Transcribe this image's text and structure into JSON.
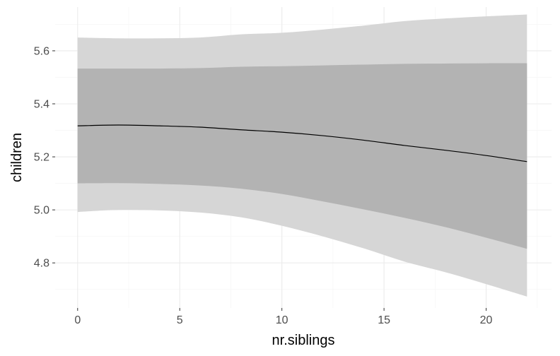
{
  "chart_data": {
    "type": "area",
    "title": "",
    "xlabel": "nr.siblings",
    "ylabel": "children",
    "xlim": [
      -1.1,
      23.2
    ],
    "ylim": [
      4.63,
      5.765
    ],
    "x_ticks": [
      0,
      5,
      10,
      15,
      20
    ],
    "x_tick_labels": [
      "0",
      "5",
      "10",
      "15",
      "20"
    ],
    "y_ticks": [
      4.8,
      5.0,
      5.2,
      5.4,
      5.6
    ],
    "y_tick_labels": [
      "4.8",
      "5.0",
      "5.2",
      "5.4",
      "5.6"
    ],
    "grid": true,
    "legend": "none",
    "colors": {
      "outer_band": "#d6d6d6",
      "inner_band": "#b3b3b3",
      "line": "#000000",
      "grid_major": "#ebebeb",
      "grid_minor": "#f4f4f4"
    },
    "x": [
      0,
      2,
      4,
      6,
      8,
      10,
      12,
      14,
      16,
      18,
      20,
      22
    ],
    "series": [
      {
        "values": [
          5.317,
          5.32,
          5.317,
          5.312,
          5.302,
          5.293,
          5.28,
          5.263,
          5.243,
          5.225,
          5.205,
          5.182
        ]
      }
    ],
    "outer_band": {
      "lower": [
        4.992,
        5.0,
        4.998,
        4.99,
        4.972,
        4.94,
        4.9,
        4.855,
        4.805,
        4.765,
        4.72,
        4.673
      ],
      "upper": [
        5.65,
        5.647,
        5.647,
        5.65,
        5.662,
        5.668,
        5.68,
        5.695,
        5.712,
        5.722,
        5.73,
        5.737
      ]
    },
    "inner_band": {
      "lower": [
        5.1,
        5.101,
        5.098,
        5.092,
        5.08,
        5.06,
        5.032,
        5.002,
        4.97,
        4.935,
        4.895,
        4.853
      ],
      "upper": [
        5.533,
        5.533,
        5.533,
        5.535,
        5.54,
        5.542,
        5.545,
        5.548,
        5.551,
        5.552,
        5.553,
        5.553
      ]
    }
  }
}
